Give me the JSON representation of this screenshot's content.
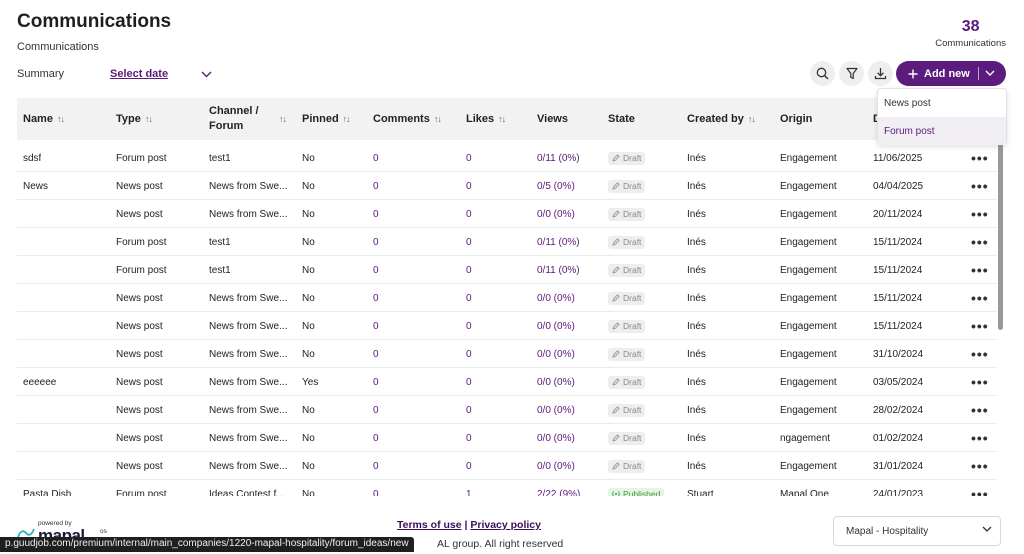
{
  "header": {
    "title": "Communications",
    "breadcrumb": "Communications",
    "count": "38",
    "count_label": "Communications"
  },
  "filters": {
    "summary_label": "Summary",
    "date_label": "Select date"
  },
  "toolbar": {
    "add_label": "Add new"
  },
  "colors": {
    "accent": "#5c1c7e",
    "published": "#3a9a3a"
  },
  "add_menu": {
    "items": [
      "News post",
      "Forum post"
    ]
  },
  "table": {
    "columns": [
      "Name",
      "Type",
      "Channel / Forum",
      "Pinned",
      "Comments",
      "Likes",
      "Views",
      "State",
      "Created by",
      "Origin",
      "D"
    ],
    "rows": [
      {
        "name": "sdsf",
        "type": "Forum post",
        "channel": "test1",
        "pinned": "No",
        "comments": "0",
        "likes": "0",
        "views": "0/11 (0%)",
        "state": "Draft",
        "created_by": "Inés",
        "origin": "Engagement",
        "date": "11/06/2025"
      },
      {
        "name": "News",
        "type": "News post",
        "channel": "News from Swe...",
        "pinned": "No",
        "comments": "0",
        "likes": "0",
        "views": "0/5 (0%)",
        "state": "Draft",
        "created_by": "Inés",
        "origin": "Engagement",
        "date": "04/04/2025"
      },
      {
        "name": "",
        "type": "News post",
        "channel": "News from Swe...",
        "pinned": "No",
        "comments": "0",
        "likes": "0",
        "views": "0/0 (0%)",
        "state": "Draft",
        "created_by": "Inés",
        "origin": "Engagement",
        "date": "20/11/2024"
      },
      {
        "name": "",
        "type": "Forum post",
        "channel": "test1",
        "pinned": "No",
        "comments": "0",
        "likes": "0",
        "views": "0/11 (0%)",
        "state": "Draft",
        "created_by": "Inés",
        "origin": "Engagement",
        "date": "15/11/2024"
      },
      {
        "name": "",
        "type": "Forum post",
        "channel": "test1",
        "pinned": "No",
        "comments": "0",
        "likes": "0",
        "views": "0/11 (0%)",
        "state": "Draft",
        "created_by": "Inés",
        "origin": "Engagement",
        "date": "15/11/2024"
      },
      {
        "name": "",
        "type": "News post",
        "channel": "News from Swe...",
        "pinned": "No",
        "comments": "0",
        "likes": "0",
        "views": "0/0 (0%)",
        "state": "Draft",
        "created_by": "Inés",
        "origin": "Engagement",
        "date": "15/11/2024"
      },
      {
        "name": "",
        "type": "News post",
        "channel": "News from Swe...",
        "pinned": "No",
        "comments": "0",
        "likes": "0",
        "views": "0/0 (0%)",
        "state": "Draft",
        "created_by": "Inés",
        "origin": "Engagement",
        "date": "15/11/2024"
      },
      {
        "name": "",
        "type": "News post",
        "channel": "News from Swe...",
        "pinned": "No",
        "comments": "0",
        "likes": "0",
        "views": "0/0 (0%)",
        "state": "Draft",
        "created_by": "Inés",
        "origin": "Engagement",
        "date": "31/10/2024"
      },
      {
        "name": "eeeeee",
        "type": "News post",
        "channel": "News from Swe...",
        "pinned": "Yes",
        "comments": "0",
        "likes": "0",
        "views": "0/0 (0%)",
        "state": "Draft",
        "created_by": "Inés",
        "origin": "Engagement",
        "date": "03/05/2024"
      },
      {
        "name": "",
        "type": "News post",
        "channel": "News from Swe...",
        "pinned": "No",
        "comments": "0",
        "likes": "0",
        "views": "0/0 (0%)",
        "state": "Draft",
        "created_by": "Inés",
        "origin": "Engagement",
        "date": "28/02/2024"
      },
      {
        "name": "",
        "type": "News post",
        "channel": "News from Swe...",
        "pinned": "No",
        "comments": "0",
        "likes": "0",
        "views": "0/0 (0%)",
        "state": "Draft",
        "created_by": "Inés",
        "origin": "ngagement",
        "date": "01/02/2024"
      },
      {
        "name": "",
        "type": "News post",
        "channel": "News from Swe...",
        "pinned": "No",
        "comments": "0",
        "likes": "0",
        "views": "0/0 (0%)",
        "state": "Draft",
        "created_by": "Inés",
        "origin": "Engagement",
        "date": "31/01/2024"
      },
      {
        "name": "Pasta Dish",
        "type": "Forum post",
        "channel": "Ideas Contest f...",
        "pinned": "No",
        "comments": "0",
        "likes": "1",
        "views": "2/22 (9%)",
        "state": "Published",
        "created_by": "Stuart",
        "origin": "Mapal One",
        "date": "24/01/2023"
      }
    ]
  },
  "footer": {
    "powered_by": "powered by",
    "brand": "mapal",
    "brand_suffix": "os",
    "terms": "Terms of use",
    "separator": " | ",
    "privacy": "Privacy policy",
    "copyright": "AL group. All right reserved",
    "company": "Mapal - Hospitality"
  },
  "statusbar": {
    "url": "p.guudjob.com/premium/internal/main_companies/1220-mapal-hospitality/forum_ideas/new"
  },
  "icons": {
    "search": "search-icon",
    "filter": "filter-icon",
    "download": "download-icon",
    "plus": "plus-icon",
    "chevron": "chevron-down-icon",
    "sort": "sort-icon",
    "more": "more-icon",
    "draft": "pencil-icon",
    "published": "broadcast-icon"
  }
}
